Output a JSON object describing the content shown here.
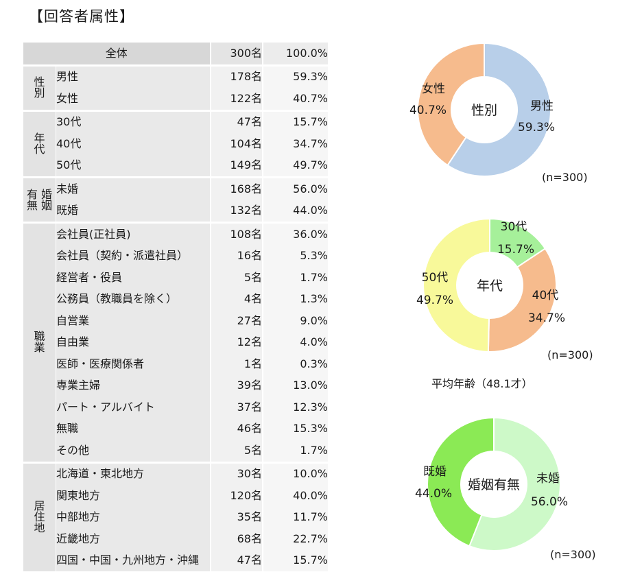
{
  "heading": "【回答者属性】",
  "table": {
    "total": {
      "label": "全体",
      "count": "300名",
      "pct": "100.0%"
    },
    "groups": [
      {
        "name": "性\n別",
        "rows": [
          {
            "label": "男性",
            "count": "178名",
            "pct": "59.3%"
          },
          {
            "label": "女性",
            "count": "122名",
            "pct": "40.7%"
          }
        ]
      },
      {
        "name": "年\n代",
        "rows": [
          {
            "label": "30代",
            "count": "47名",
            "pct": "15.7%"
          },
          {
            "label": "40代",
            "count": "104名",
            "pct": "34.7%"
          },
          {
            "label": "50代",
            "count": "149名",
            "pct": "49.7%"
          }
        ]
      },
      {
        "name": "有 婚\n無 姻",
        "rows": [
          {
            "label": "未婚",
            "count": "168名",
            "pct": "56.0%"
          },
          {
            "label": "既婚",
            "count": "132名",
            "pct": "44.0%"
          }
        ]
      },
      {
        "name": "職\n業",
        "rows": [
          {
            "label": "会社員(正社員)",
            "count": "108名",
            "pct": "36.0%"
          },
          {
            "label": "会社員（契約・派遣社員）",
            "count": "16名",
            "pct": "5.3%"
          },
          {
            "label": "経営者・役員",
            "count": "5名",
            "pct": "1.7%"
          },
          {
            "label": "公務員（教職員を除く）",
            "count": "4名",
            "pct": "1.3%"
          },
          {
            "label": "自営業",
            "count": "27名",
            "pct": "9.0%"
          },
          {
            "label": "自由業",
            "count": "12名",
            "pct": "4.0%"
          },
          {
            "label": "医師・医療関係者",
            "count": "1名",
            "pct": "0.3%"
          },
          {
            "label": "専業主婦",
            "count": "39名",
            "pct": "13.0%"
          },
          {
            "label": "パート・アルバイト",
            "count": "37名",
            "pct": "12.3%"
          },
          {
            "label": "無職",
            "count": "46名",
            "pct": "15.3%"
          },
          {
            "label": "その他",
            "count": "5名",
            "pct": "1.7%"
          }
        ]
      },
      {
        "name": "居\n住\n地",
        "rows": [
          {
            "label": "北海道・東北地方",
            "count": "30名",
            "pct": "10.0%"
          },
          {
            "label": "関東地方",
            "count": "120名",
            "pct": "40.0%"
          },
          {
            "label": "中部地方",
            "count": "35名",
            "pct": "11.7%"
          },
          {
            "label": "近畿地方",
            "count": "68名",
            "pct": "22.7%"
          },
          {
            "label": "四国・中国・九州地方・沖縄",
            "count": "47名",
            "pct": "15.7%"
          }
        ]
      }
    ]
  },
  "chart_data": [
    {
      "type": "pie",
      "title": "性別",
      "n_note": "(n=300)",
      "slices": [
        {
          "label": "男性",
          "value": 59.3,
          "value_label": "59.3%",
          "color": "#b8cfe9"
        },
        {
          "label": "女性",
          "value": 40.7,
          "value_label": "40.7%",
          "color": "#f6bb8d"
        }
      ]
    },
    {
      "type": "pie",
      "title": "年代",
      "n_note": "(n=300)",
      "slices": [
        {
          "label": "30代",
          "value": 15.7,
          "value_label": "15.7%",
          "color": "#a6f09a"
        },
        {
          "label": "40代",
          "value": 34.7,
          "value_label": "34.7%",
          "color": "#f6bb8d"
        },
        {
          "label": "50代",
          "value": 49.7,
          "value_label": "49.7%",
          "color": "#f8f99a"
        }
      ]
    },
    {
      "type": "pie",
      "title": "婚姻有無",
      "n_note": "(n=300)",
      "slices": [
        {
          "label": "未婚",
          "value": 56.0,
          "value_label": "56.0%",
          "color": "#cdf9c8"
        },
        {
          "label": "既婚",
          "value": 44.0,
          "value_label": "44.0%",
          "color": "#8bea55"
        }
      ]
    }
  ],
  "average_age": "平均年齢（48.1才）"
}
